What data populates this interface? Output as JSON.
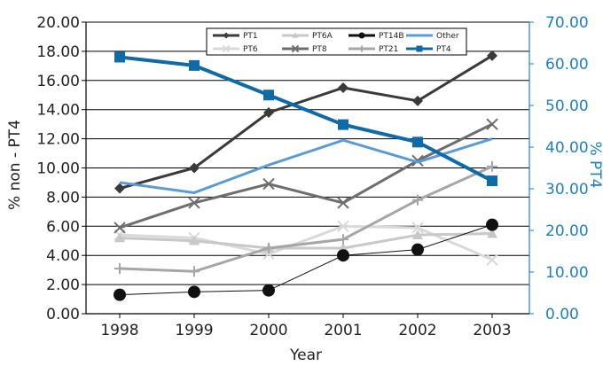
{
  "chart_data": {
    "type": "line",
    "title": "",
    "xlabel": "Year",
    "ylabel_left": "% non - PT4",
    "ylabel_right": "% PT4",
    "categories": [
      "1998",
      "1999",
      "2000",
      "2001",
      "2002",
      "2003"
    ],
    "y_left_range": [
      0,
      20
    ],
    "y_right_range": [
      0,
      70
    ],
    "y_left_ticks": [
      "0.00",
      "2.00",
      "4.00",
      "6.00",
      "8.00",
      "10.00",
      "12.00",
      "14.00",
      "16.00",
      "18.00",
      "20.00"
    ],
    "y_right_ticks": [
      "0.00",
      "10.00",
      "20.00",
      "30.00",
      "40.00",
      "50.00",
      "60.00",
      "70.00"
    ],
    "grid": "horizontal",
    "legend_position": "top",
    "series": [
      {
        "name": "PT1",
        "axis": "left",
        "color": "#3a3a3a",
        "marker": "diamond",
        "values": [
          8.6,
          10.0,
          13.8,
          15.5,
          14.6,
          17.7
        ]
      },
      {
        "name": "PT6",
        "axis": "left",
        "color": "#d9d9d9",
        "marker": "x",
        "values": [
          5.4,
          5.2,
          4.1,
          6.0,
          5.9,
          3.7
        ]
      },
      {
        "name": "PT6A",
        "axis": "left",
        "color": "#c8c8c8",
        "marker": "triangle",
        "values": [
          5.2,
          5.0,
          4.5,
          4.5,
          5.4,
          5.5
        ]
      },
      {
        "name": "PT8",
        "axis": "left",
        "color": "#6e6e6e",
        "marker": "x",
        "values": [
          5.9,
          7.6,
          8.9,
          7.6,
          10.5,
          13.0
        ]
      },
      {
        "name": "PT14B",
        "axis": "left",
        "color": "#111111",
        "marker": "circle",
        "values": [
          1.3,
          1.5,
          1.6,
          4.0,
          4.4,
          6.1
        ]
      },
      {
        "name": "PT21",
        "axis": "left",
        "color": "#a6a6a6",
        "marker": "plus",
        "values": [
          3.1,
          2.9,
          4.5,
          5.1,
          7.8,
          10.1
        ]
      },
      {
        "name": "Other",
        "axis": "left",
        "color": "#5b9bd5",
        "marker": "none",
        "values": [
          9.0,
          8.3,
          10.2,
          11.9,
          10.4,
          12.0
        ]
      },
      {
        "name": "PT4",
        "axis": "right",
        "color": "#0f6aa8",
        "marker": "square",
        "values": [
          61.6,
          59.6,
          52.5,
          45.4,
          41.2,
          31.9
        ]
      }
    ]
  }
}
